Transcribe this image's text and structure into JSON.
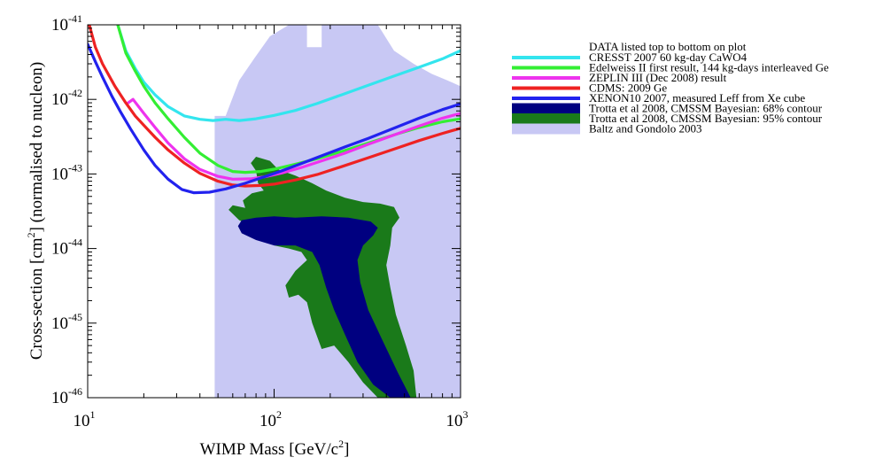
{
  "chart_data": {
    "type": "line",
    "title": "",
    "xlabel": "WIMP Mass [GeV/c2]",
    "xlabel_parts": {
      "text": "WIMP Mass [GeV/c",
      "sup": "2",
      "close": "]"
    },
    "ylabel": "Cross-section [cm2] (normalised to nucleon)",
    "ylabel_parts": {
      "text": "Cross-section [cm",
      "sup": "2",
      "close": "] (normalised to nucleon)"
    },
    "xscale": "log",
    "yscale": "log",
    "xlim": [
      10,
      1000
    ],
    "ylim": [
      1e-46,
      1e-41
    ],
    "grid": false,
    "legend_position": "right",
    "legend_header": "DATA listed top to bottom on plot",
    "x_ticks": [
      {
        "value": 10,
        "base": "10",
        "exp": "1"
      },
      {
        "value": 100,
        "base": "10",
        "exp": "2"
      },
      {
        "value": 1000,
        "base": "10",
        "exp": "3"
      }
    ],
    "y_ticks": [
      {
        "value": 1e-46,
        "base": "10",
        "exp": "-46"
      },
      {
        "value": 1e-45,
        "base": "10",
        "exp": "-45"
      },
      {
        "value": 1e-44,
        "base": "10",
        "exp": "-44"
      },
      {
        "value": 1e-43,
        "base": "10",
        "exp": "-43"
      },
      {
        "value": 1e-42,
        "base": "10",
        "exp": "-42"
      },
      {
        "value": 1e-41,
        "base": "10",
        "exp": "-41"
      }
    ],
    "series": [
      {
        "name": "CRESST 2007 60 kg-day CaWO4",
        "kind": "line",
        "color": "#33e5ee",
        "points": [
          [
            14.5,
            1e-41
          ],
          [
            16,
            4.5e-42
          ],
          [
            18,
            2.6e-42
          ],
          [
            20,
            1.7e-42
          ],
          [
            23,
            1.15e-42
          ],
          [
            27,
            8e-43
          ],
          [
            33,
            6e-43
          ],
          [
            40,
            5.4e-43
          ],
          [
            47,
            5.2e-43
          ],
          [
            55,
            5.4e-43
          ],
          [
            65,
            5.2e-43
          ],
          [
            80,
            5.5e-43
          ],
          [
            100,
            6.1e-43
          ],
          [
            130,
            7.1e-43
          ],
          [
            170,
            8.8e-43
          ],
          [
            230,
            1.15e-42
          ],
          [
            320,
            1.55e-42
          ],
          [
            450,
            2.1e-42
          ],
          [
            600,
            2.7e-42
          ],
          [
            800,
            3.5e-42
          ],
          [
            1000,
            4.5e-42
          ]
        ]
      },
      {
        "name": "Edelweiss II first result, 144 kg-days interleaved Ge",
        "kind": "line",
        "color": "#33ee33",
        "points": [
          [
            14.5,
            1e-41
          ],
          [
            16,
            4.2e-42
          ],
          [
            18,
            2.4e-42
          ],
          [
            20,
            1.5e-42
          ],
          [
            23,
            9e-43
          ],
          [
            27,
            5.5e-43
          ],
          [
            33,
            3.1e-43
          ],
          [
            40,
            1.9e-43
          ],
          [
            50,
            1.3e-43
          ],
          [
            60,
            1.08e-43
          ],
          [
            70,
            1.05e-43
          ],
          [
            85,
            1.08e-43
          ],
          [
            100,
            1.16e-43
          ],
          [
            130,
            1.35e-43
          ],
          [
            170,
            1.6e-43
          ],
          [
            230,
            2e-43
          ],
          [
            320,
            2.6e-43
          ],
          [
            450,
            3.4e-43
          ],
          [
            600,
            4.2e-43
          ],
          [
            800,
            5e-43
          ],
          [
            1000,
            5.5e-43
          ]
        ]
      },
      {
        "name": "ZEPLIN III (Dec 2008) result",
        "kind": "line",
        "color": "#ee33ee",
        "points": [
          [
            16.5,
            9e-43
          ],
          [
            17.5,
            1e-42
          ],
          [
            20,
            6.5e-43
          ],
          [
            23,
            4.2e-43
          ],
          [
            27,
            2.6e-43
          ],
          [
            33,
            1.6e-43
          ],
          [
            40,
            1.15e-43
          ],
          [
            50,
            9.3e-44
          ],
          [
            60,
            8.5e-44
          ],
          [
            75,
            8.6e-44
          ],
          [
            90,
            9.2e-44
          ],
          [
            110,
            1.03e-43
          ],
          [
            140,
            1.22e-43
          ],
          [
            180,
            1.5e-43
          ],
          [
            240,
            1.9e-43
          ],
          [
            320,
            2.5e-43
          ],
          [
            450,
            3.4e-43
          ],
          [
            600,
            4.4e-43
          ],
          [
            800,
            5.6e-43
          ],
          [
            1000,
            6.5e-43
          ]
        ]
      },
      {
        "name": "CDMS: 2009 Ge",
        "kind": "line",
        "color": "#ee2222",
        "points": [
          [
            10.2,
            1e-41
          ],
          [
            11,
            5e-42
          ],
          [
            12,
            3e-42
          ],
          [
            14,
            1.5e-42
          ],
          [
            16,
            9e-43
          ],
          [
            18,
            6e-43
          ],
          [
            20,
            4.5e-43
          ],
          [
            23,
            3.1e-43
          ],
          [
            27,
            2.1e-43
          ],
          [
            33,
            1.4e-43
          ],
          [
            40,
            1.02e-43
          ],
          [
            50,
            8e-44
          ],
          [
            60,
            7.1e-44
          ],
          [
            70,
            6.9e-44
          ],
          [
            85,
            7e-44
          ],
          [
            100,
            7.3e-44
          ],
          [
            130,
            8.3e-44
          ],
          [
            170,
            9.8e-44
          ],
          [
            230,
            1.25e-43
          ],
          [
            320,
            1.65e-43
          ],
          [
            450,
            2.2e-43
          ],
          [
            600,
            2.8e-43
          ],
          [
            800,
            3.5e-43
          ],
          [
            1000,
            4.1e-43
          ]
        ]
      },
      {
        "name": "XENON10 2007, measured Leff from Xe cube",
        "kind": "line",
        "color": "#2222ee",
        "points": [
          [
            10,
            5.5e-42
          ],
          [
            11,
            3.2e-42
          ],
          [
            12,
            2e-42
          ],
          [
            13.5,
            1.1e-42
          ],
          [
            15,
            6.8e-43
          ],
          [
            17,
            4e-43
          ],
          [
            20,
            2.1e-43
          ],
          [
            23,
            1.3e-43
          ],
          [
            27,
            8.5e-44
          ],
          [
            32,
            6.2e-44
          ],
          [
            37,
            5.6e-44
          ],
          [
            45,
            5.7e-44
          ],
          [
            55,
            6.3e-44
          ],
          [
            70,
            7.5e-44
          ],
          [
            90,
            9.3e-44
          ],
          [
            110,
            1.1e-43
          ],
          [
            140,
            1.38e-43
          ],
          [
            180,
            1.75e-43
          ],
          [
            240,
            2.3e-43
          ],
          [
            320,
            3e-43
          ],
          [
            450,
            4.2e-43
          ],
          [
            600,
            5.6e-43
          ],
          [
            800,
            7.3e-43
          ],
          [
            1000,
            8.7e-43
          ]
        ]
      },
      {
        "name": "Trotta et al 2008, CMSSM Bayesian: 68% contour",
        "kind": "region",
        "color": "#000080",
        "points": [
          [
            67,
            2.4e-44
          ],
          [
            80,
            2.6e-44
          ],
          [
            100,
            2.7e-44
          ],
          [
            130,
            2.6e-44
          ],
          [
            180,
            2.7e-44
          ],
          [
            250,
            2.6e-44
          ],
          [
            330,
            2.3e-44
          ],
          [
            360,
            1.9e-44
          ],
          [
            340,
            1.5e-44
          ],
          [
            300,
            1.1e-44
          ],
          [
            280,
            7e-45
          ],
          [
            290,
            3.5e-45
          ],
          [
            320,
            1.5e-45
          ],
          [
            380,
            6e-46
          ],
          [
            460,
            2.2e-46
          ],
          [
            540,
            1e-46
          ],
          [
            420,
            1e-46
          ],
          [
            340,
            1.5e-46
          ],
          [
            280,
            3e-46
          ],
          [
            240,
            7e-46
          ],
          [
            210,
            1.5e-45
          ],
          [
            190,
            3e-45
          ],
          [
            175,
            6e-45
          ],
          [
            160,
            9e-45
          ],
          [
            130,
            1.1e-44
          ],
          [
            100,
            1.1e-44
          ],
          [
            80,
            1.3e-44
          ],
          [
            67,
            1.6e-44
          ],
          [
            64,
            2e-44
          ]
        ]
      },
      {
        "name": "Trotta et al 2008, CMSSM Bayesian: 95% contour",
        "kind": "region",
        "color": "#1a7a1a",
        "points": [
          [
            80,
            1.7e-43
          ],
          [
            95,
            1.5e-43
          ],
          [
            105,
            1.15e-43
          ],
          [
            130,
            9.5e-44
          ],
          [
            160,
            7.5e-44
          ],
          [
            190,
            6e-44
          ],
          [
            240,
            4.8e-44
          ],
          [
            300,
            4.2e-44
          ],
          [
            370,
            4e-44
          ],
          [
            440,
            3.6e-44
          ],
          [
            470,
            2.6e-44
          ],
          [
            430,
            1.9e-44
          ],
          [
            420,
            1.1e-44
          ],
          [
            400,
            6e-45
          ],
          [
            420,
            3e-45
          ],
          [
            450,
            1.3e-45
          ],
          [
            510,
            5e-46
          ],
          [
            560,
            2.3e-46
          ],
          [
            580,
            1e-46
          ],
          [
            360,
            1e-46
          ],
          [
            300,
            1.6e-46
          ],
          [
            250,
            3e-46
          ],
          [
            210,
            5e-46
          ],
          [
            180,
            4.5e-46
          ],
          [
            160,
            1e-45
          ],
          [
            150,
            1.9e-45
          ],
          [
            135,
            2.4e-45
          ],
          [
            120,
            2.2e-45
          ],
          [
            115,
            3.2e-45
          ],
          [
            130,
            5e-45
          ],
          [
            150,
            7e-45
          ],
          [
            140,
            9e-45
          ],
          [
            120,
            1e-44
          ],
          [
            100,
            1.1e-44
          ],
          [
            90,
            1.5e-44
          ],
          [
            80,
            1.9e-44
          ],
          [
            65,
            2.4e-44
          ],
          [
            57,
            3.3e-44
          ],
          [
            60,
            3.8e-44
          ],
          [
            70,
            3.5e-44
          ],
          [
            68,
            4.4e-44
          ],
          [
            76,
            5.5e-44
          ],
          [
            88,
            6e-44
          ],
          [
            82,
            7.5e-44
          ],
          [
            80,
            1.1e-43
          ],
          [
            75,
            1.4e-43
          ]
        ]
      },
      {
        "name": "Baltz and Gondolo 2003",
        "kind": "region",
        "color": "#c8c8f4",
        "points": [
          [
            48,
            1e-46
          ],
          [
            48,
            6e-43
          ],
          [
            55,
            6e-43
          ],
          [
            65,
            1.8e-42
          ],
          [
            78,
            3.5e-42
          ],
          [
            95,
            7e-42
          ],
          [
            120,
            1e-41
          ],
          [
            150,
            1e-41
          ],
          [
            150,
            5e-42
          ],
          [
            180,
            5e-42
          ],
          [
            180,
            1e-41
          ],
          [
            360,
            1e-41
          ],
          [
            440,
            4.5e-42
          ],
          [
            560,
            3e-42
          ],
          [
            700,
            2.2e-42
          ],
          [
            850,
            1.8e-42
          ],
          [
            1000,
            1.5e-42
          ],
          [
            1000,
            1e-46
          ]
        ]
      }
    ]
  }
}
